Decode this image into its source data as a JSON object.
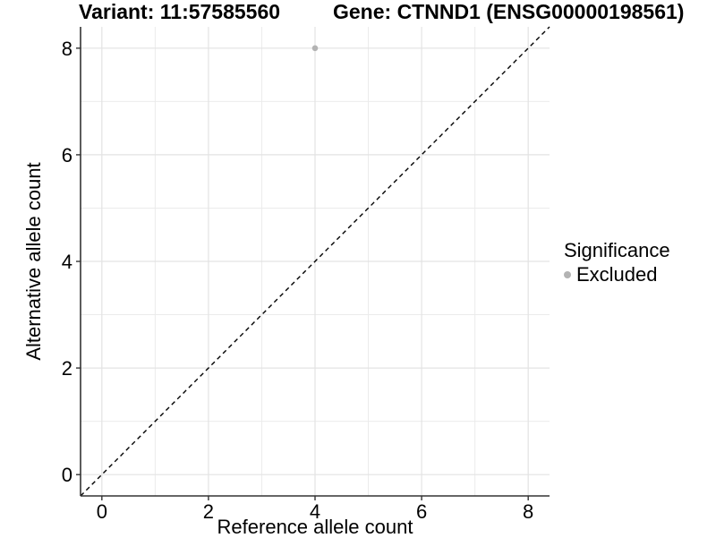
{
  "titles": {
    "variant": "Variant: 11:57585560",
    "gene": "Gene: CTNND1 (ENSG00000198561)"
  },
  "chart_data": {
    "type": "scatter",
    "xlabel": "Reference allele count",
    "ylabel": "Alternative allele count",
    "xlim": [
      -0.4,
      8.4
    ],
    "ylim": [
      -0.4,
      8.4
    ],
    "x_ticks": [
      0,
      2,
      4,
      6,
      8
    ],
    "y_ticks": [
      0,
      2,
      4,
      6,
      8
    ],
    "x_minor_ticks": [
      1,
      3,
      5,
      7
    ],
    "y_minor_ticks": [
      1,
      3,
      5,
      7
    ],
    "grid": true,
    "series": [
      {
        "name": "Excluded",
        "points": [
          {
            "x": 4,
            "y": 8
          }
        ],
        "color": "#b3b3b3"
      }
    ],
    "reference_line": {
      "type": "identity",
      "slope": 1,
      "intercept": 0,
      "style": "dashed",
      "color": "#000000"
    },
    "legend": {
      "title": "Significance",
      "position": "right",
      "items": [
        {
          "label": "Excluded",
          "color": "#b3b3b3",
          "marker": "circle"
        }
      ]
    },
    "colors": {
      "grid_major": "#e3e3e3",
      "grid_minor": "#ebebeb",
      "axis_line": "#333333",
      "tick_mark": "#333333",
      "tick_text": "#000000",
      "background": "#ffffff"
    }
  }
}
